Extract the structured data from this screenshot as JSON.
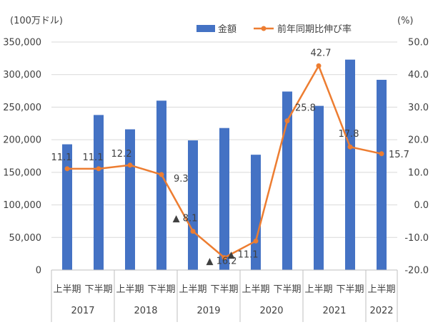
{
  "chart_data": {
    "type": "bar+line",
    "title": "",
    "y_left_unit": "(100万ドル)",
    "y_right_unit": "(%)",
    "y_left_ticks": [
      "0",
      "50,000",
      "100,000",
      "150,000",
      "200,000",
      "250,000",
      "300,000",
      "350,000"
    ],
    "y_right_ticks": [
      "-20.0",
      "-10.0",
      "0.0",
      "10.0",
      "20.0",
      "30.0",
      "40.0",
      "50.0"
    ],
    "y_left_range": [
      0,
      350000
    ],
    "y_right_range": [
      -20,
      50
    ],
    "categories": [
      "上半期",
      "下半期",
      "上半期",
      "下半期",
      "上半期",
      "下半期",
      "上半期",
      "下半期",
      "上半期",
      "下半期",
      "上半期"
    ],
    "years": [
      {
        "label": "2017",
        "span": 2
      },
      {
        "label": "2018",
        "span": 2
      },
      {
        "label": "2019",
        "span": 2
      },
      {
        "label": "2020",
        "span": 2
      },
      {
        "label": "2021",
        "span": 2
      },
      {
        "label": "2022",
        "span": 1
      }
    ],
    "series": [
      {
        "name": "金額",
        "type": "bar",
        "axis": "left",
        "color": "#4472C4",
        "values": [
          193000,
          238000,
          216000,
          260000,
          199000,
          218000,
          177000,
          274000,
          252000,
          323000,
          292000
        ]
      },
      {
        "name": "前年同期比伸び率",
        "type": "line",
        "axis": "right",
        "color": "#ED7D31",
        "values": [
          11.1,
          11.1,
          12.2,
          9.3,
          -8.1,
          -16.2,
          -11.1,
          25.8,
          42.7,
          17.8,
          15.7
        ],
        "labels": [
          "11.1",
          "11.1",
          "12.2",
          "9.3",
          "▲ 8.1",
          "▲ 16.2",
          "▲ 11.1",
          "25.8",
          "42.7",
          "17.8",
          "15.7"
        ]
      }
    ],
    "grid": true,
    "legend_position": "top"
  }
}
